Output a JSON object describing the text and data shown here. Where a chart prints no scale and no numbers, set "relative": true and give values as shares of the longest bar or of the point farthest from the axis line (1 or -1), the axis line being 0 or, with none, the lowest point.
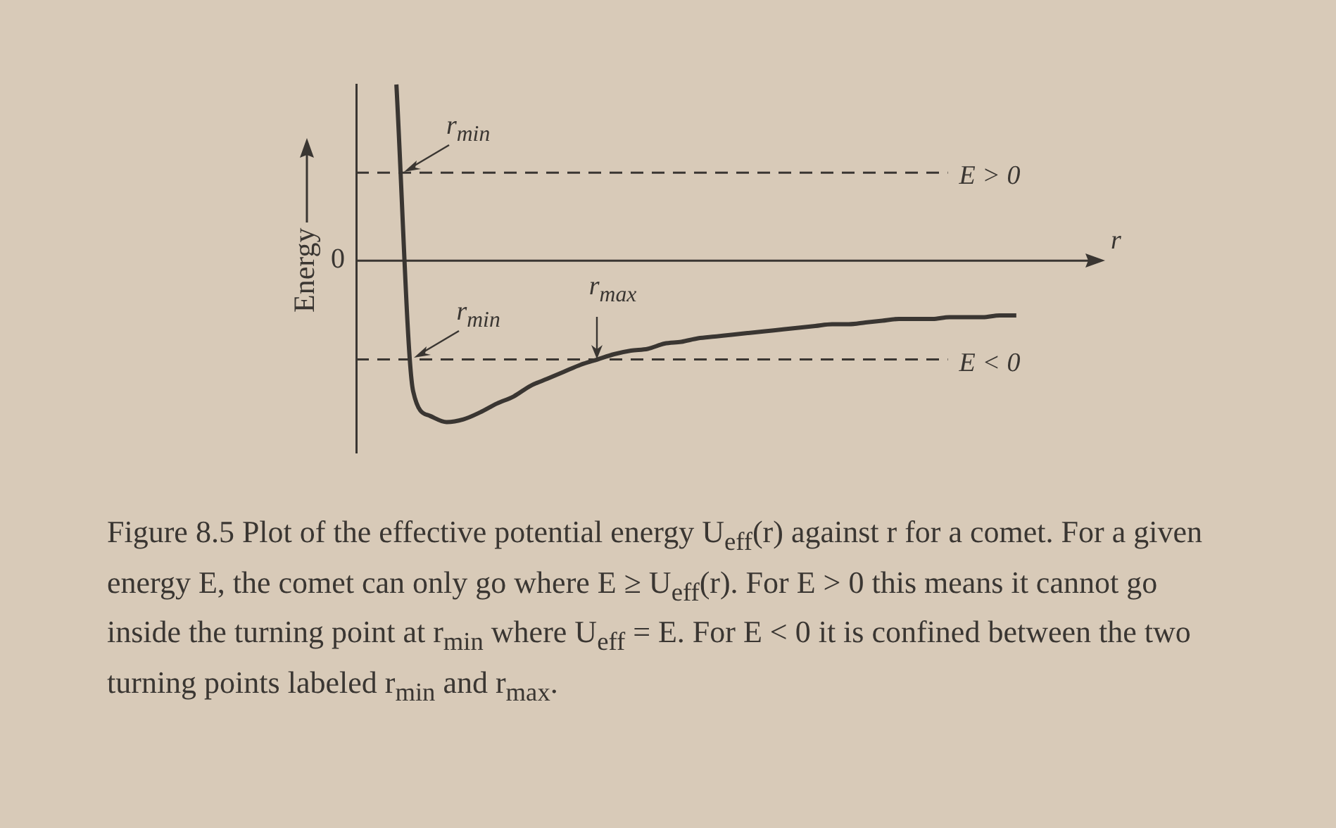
{
  "chart_data": {
    "type": "line",
    "relative": true,
    "ylabel": "Energy",
    "xlabel": "r",
    "categories": [
      null,
      null,
      null,
      null,
      null,
      null,
      null,
      null,
      null,
      null,
      null,
      null,
      null,
      null,
      null,
      null,
      null,
      null,
      null,
      null,
      null,
      null,
      null,
      null,
      null,
      null,
      null,
      null,
      null,
      null,
      null,
      null,
      null,
      null,
      null,
      null,
      null,
      null
    ],
    "series": [
      {
        "color": "#3a3632",
        "values": [
          1.0,
          -0.74,
          -0.88,
          -0.915,
          -0.9,
          -0.86,
          -0.81,
          -0.77,
          -0.71,
          -0.67,
          -0.63,
          -0.59,
          -0.56,
          -0.53,
          -0.51,
          -0.5,
          -0.47,
          -0.46,
          -0.44,
          -0.43,
          -0.42,
          -0.41,
          -0.4,
          -0.39,
          -0.38,
          -0.37,
          -0.36,
          -0.36,
          -0.35,
          -0.34,
          -0.33,
          -0.33,
          -0.33,
          -0.32,
          -0.32,
          -0.32,
          -0.31,
          -0.31
        ]
      }
    ],
    "ref_lines": [
      {
        "axis": "y",
        "value": 0.5,
        "label": "E > 0",
        "line_style": "dashed"
      },
      {
        "axis": "y",
        "value": -0.56,
        "label": "E < 0",
        "line_style": "dashed"
      }
    ],
    "annotations": [
      "0",
      {
        "text": "r$_{min}$",
        "y": 0.5
      },
      {
        "text": "r$_{min}$",
        "y": -0.56
      },
      {
        "text": "r$_{max}$",
        "y": -0.56
      },
      "Figure 8.5 Plot of the effective potential energy U$_{eff}$(r) against r for a comet. For a given energy E, the comet can only go where E ≥ U$_{eff}$(r). For E > 0 this means it cannot go inside the turning point at r$_{min}$ where U$_{eff}$ = E. For E < 0 it is confined between the two turning points labeled r$_{min}$ and r$_{max}$."
    ],
    "grid": false,
    "legend": false,
    "marker": "none",
    "line_style": "solid"
  }
}
